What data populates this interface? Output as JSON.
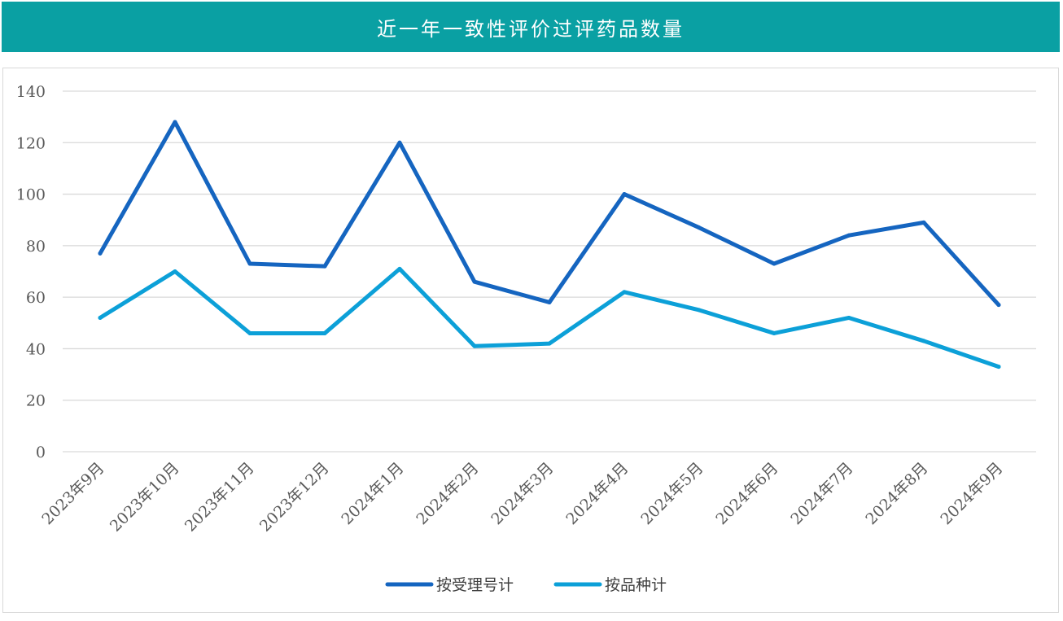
{
  "header": {
    "title": "近一年一致性评价过评药品数量"
  },
  "chart_data": {
    "type": "line",
    "title": "近一年一致性评价过评药品数量",
    "categories": [
      "2023年9月",
      "2023年10月",
      "2023年11月",
      "2023年12月",
      "2024年1月",
      "2024年2月",
      "2024年3月",
      "2024年4月",
      "2024年5月",
      "2024年6月",
      "2024年7月",
      "2024年8月",
      "2024年9月"
    ],
    "yticks": [
      "0",
      "20",
      "40",
      "60",
      "80",
      "100",
      "120",
      "140"
    ],
    "ylim": [
      0,
      140
    ],
    "grid": true,
    "legend_position": "bottom",
    "series": [
      {
        "name": "按受理号计",
        "color": "#1565c0",
        "values": [
          77,
          128,
          73,
          72,
          120,
          66,
          58,
          100,
          87,
          73,
          84,
          89,
          57
        ]
      },
      {
        "name": "按品种计",
        "color": "#0ca0d8",
        "values": [
          52,
          70,
          46,
          46,
          71,
          41,
          42,
          62,
          55,
          46,
          52,
          43,
          33
        ]
      }
    ]
  }
}
